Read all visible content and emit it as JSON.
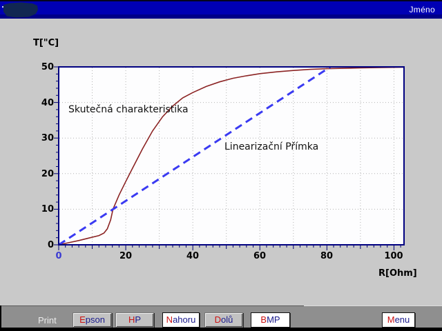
{
  "titlebar": {
    "title_right": "Jméno"
  },
  "chart": {
    "y_axis_title": "T[\"C]",
    "x_axis_title": "R[Ohm]",
    "annotation_curve": "Skutečná charakteristika",
    "annotation_line": "Linearizační Přímka",
    "y_tick_labels": [
      "50",
      "40",
      "30",
      "20",
      "10",
      "0"
    ],
    "x_tick_labels": [
      "0",
      "20",
      "40",
      "60",
      "80",
      "100"
    ]
  },
  "chart_data": {
    "type": "line",
    "title": "",
    "xlabel": "R[Ohm]",
    "ylabel": "T[\"C]",
    "xlim": [
      0,
      103
    ],
    "ylim": [
      0,
      50
    ],
    "x_ticks": [
      0,
      20,
      40,
      60,
      80,
      100
    ],
    "y_ticks": [
      0,
      10,
      20,
      30,
      40,
      50
    ],
    "x_minor_step": 2,
    "y_minor_step": 2,
    "grid_x": [
      10,
      20,
      30,
      40,
      50,
      60,
      70,
      80,
      90,
      100
    ],
    "grid_y": [
      10,
      20,
      30,
      40
    ],
    "grid_style": "dotted gray, every 10 units both axes",
    "legend_position": "none",
    "series": [
      {
        "name": "Skutečná charakteristika",
        "color": "#8b2323",
        "style": "solid",
        "points": [
          [
            0,
            0
          ],
          [
            3,
            0.6
          ],
          [
            6,
            1.2
          ],
          [
            9,
            1.9
          ],
          [
            12,
            2.6
          ],
          [
            13.5,
            3.3
          ],
          [
            14.5,
            4.5
          ],
          [
            15.5,
            7
          ],
          [
            16.2,
            10
          ],
          [
            18,
            14
          ],
          [
            20,
            17.8
          ],
          [
            22,
            21.5
          ],
          [
            25,
            27
          ],
          [
            28,
            32
          ],
          [
            31,
            36
          ],
          [
            34,
            39
          ],
          [
            37,
            41.3
          ],
          [
            40,
            42.8
          ],
          [
            44,
            44.5
          ],
          [
            48,
            45.8
          ],
          [
            52,
            46.8
          ],
          [
            56,
            47.5
          ],
          [
            60,
            48.1
          ],
          [
            65,
            48.6
          ],
          [
            70,
            49
          ],
          [
            75,
            49.3
          ],
          [
            80,
            49.5
          ],
          [
            85,
            49.6
          ],
          [
            90,
            49.7
          ],
          [
            96,
            49.8
          ],
          [
            103,
            49.9
          ]
        ]
      },
      {
        "name": "Linearizační Přímka",
        "color": "#3a3af2",
        "style": "dashed",
        "points": [
          [
            0,
            0
          ],
          [
            81,
            50
          ]
        ]
      }
    ]
  },
  "toolbar": {
    "print_label": "Print",
    "buttons": [
      {
        "hot": "E",
        "rest": "pson"
      },
      {
        "hot": "H",
        "rest": "P"
      },
      {
        "hot": "N",
        "rest": "ahoru"
      },
      {
        "hot": "D",
        "rest": "olů"
      },
      {
        "hot": "B",
        "rest": "MP"
      },
      {
        "hot": "M",
        "rest": "enu"
      }
    ]
  },
  "colors": {
    "titlebar_blue": "#0000b4",
    "main_background": "#c9c9c9",
    "toolbar_gray": "#8f8f8f",
    "plot_border_navy": "#000080",
    "curve_red": "#8b2323",
    "line_blue": "#3a3af2",
    "hotkey_red": "#cc1111",
    "button_text_navy": "#1a1a8c",
    "x_zero_label_blue": "#3a3ad2"
  }
}
